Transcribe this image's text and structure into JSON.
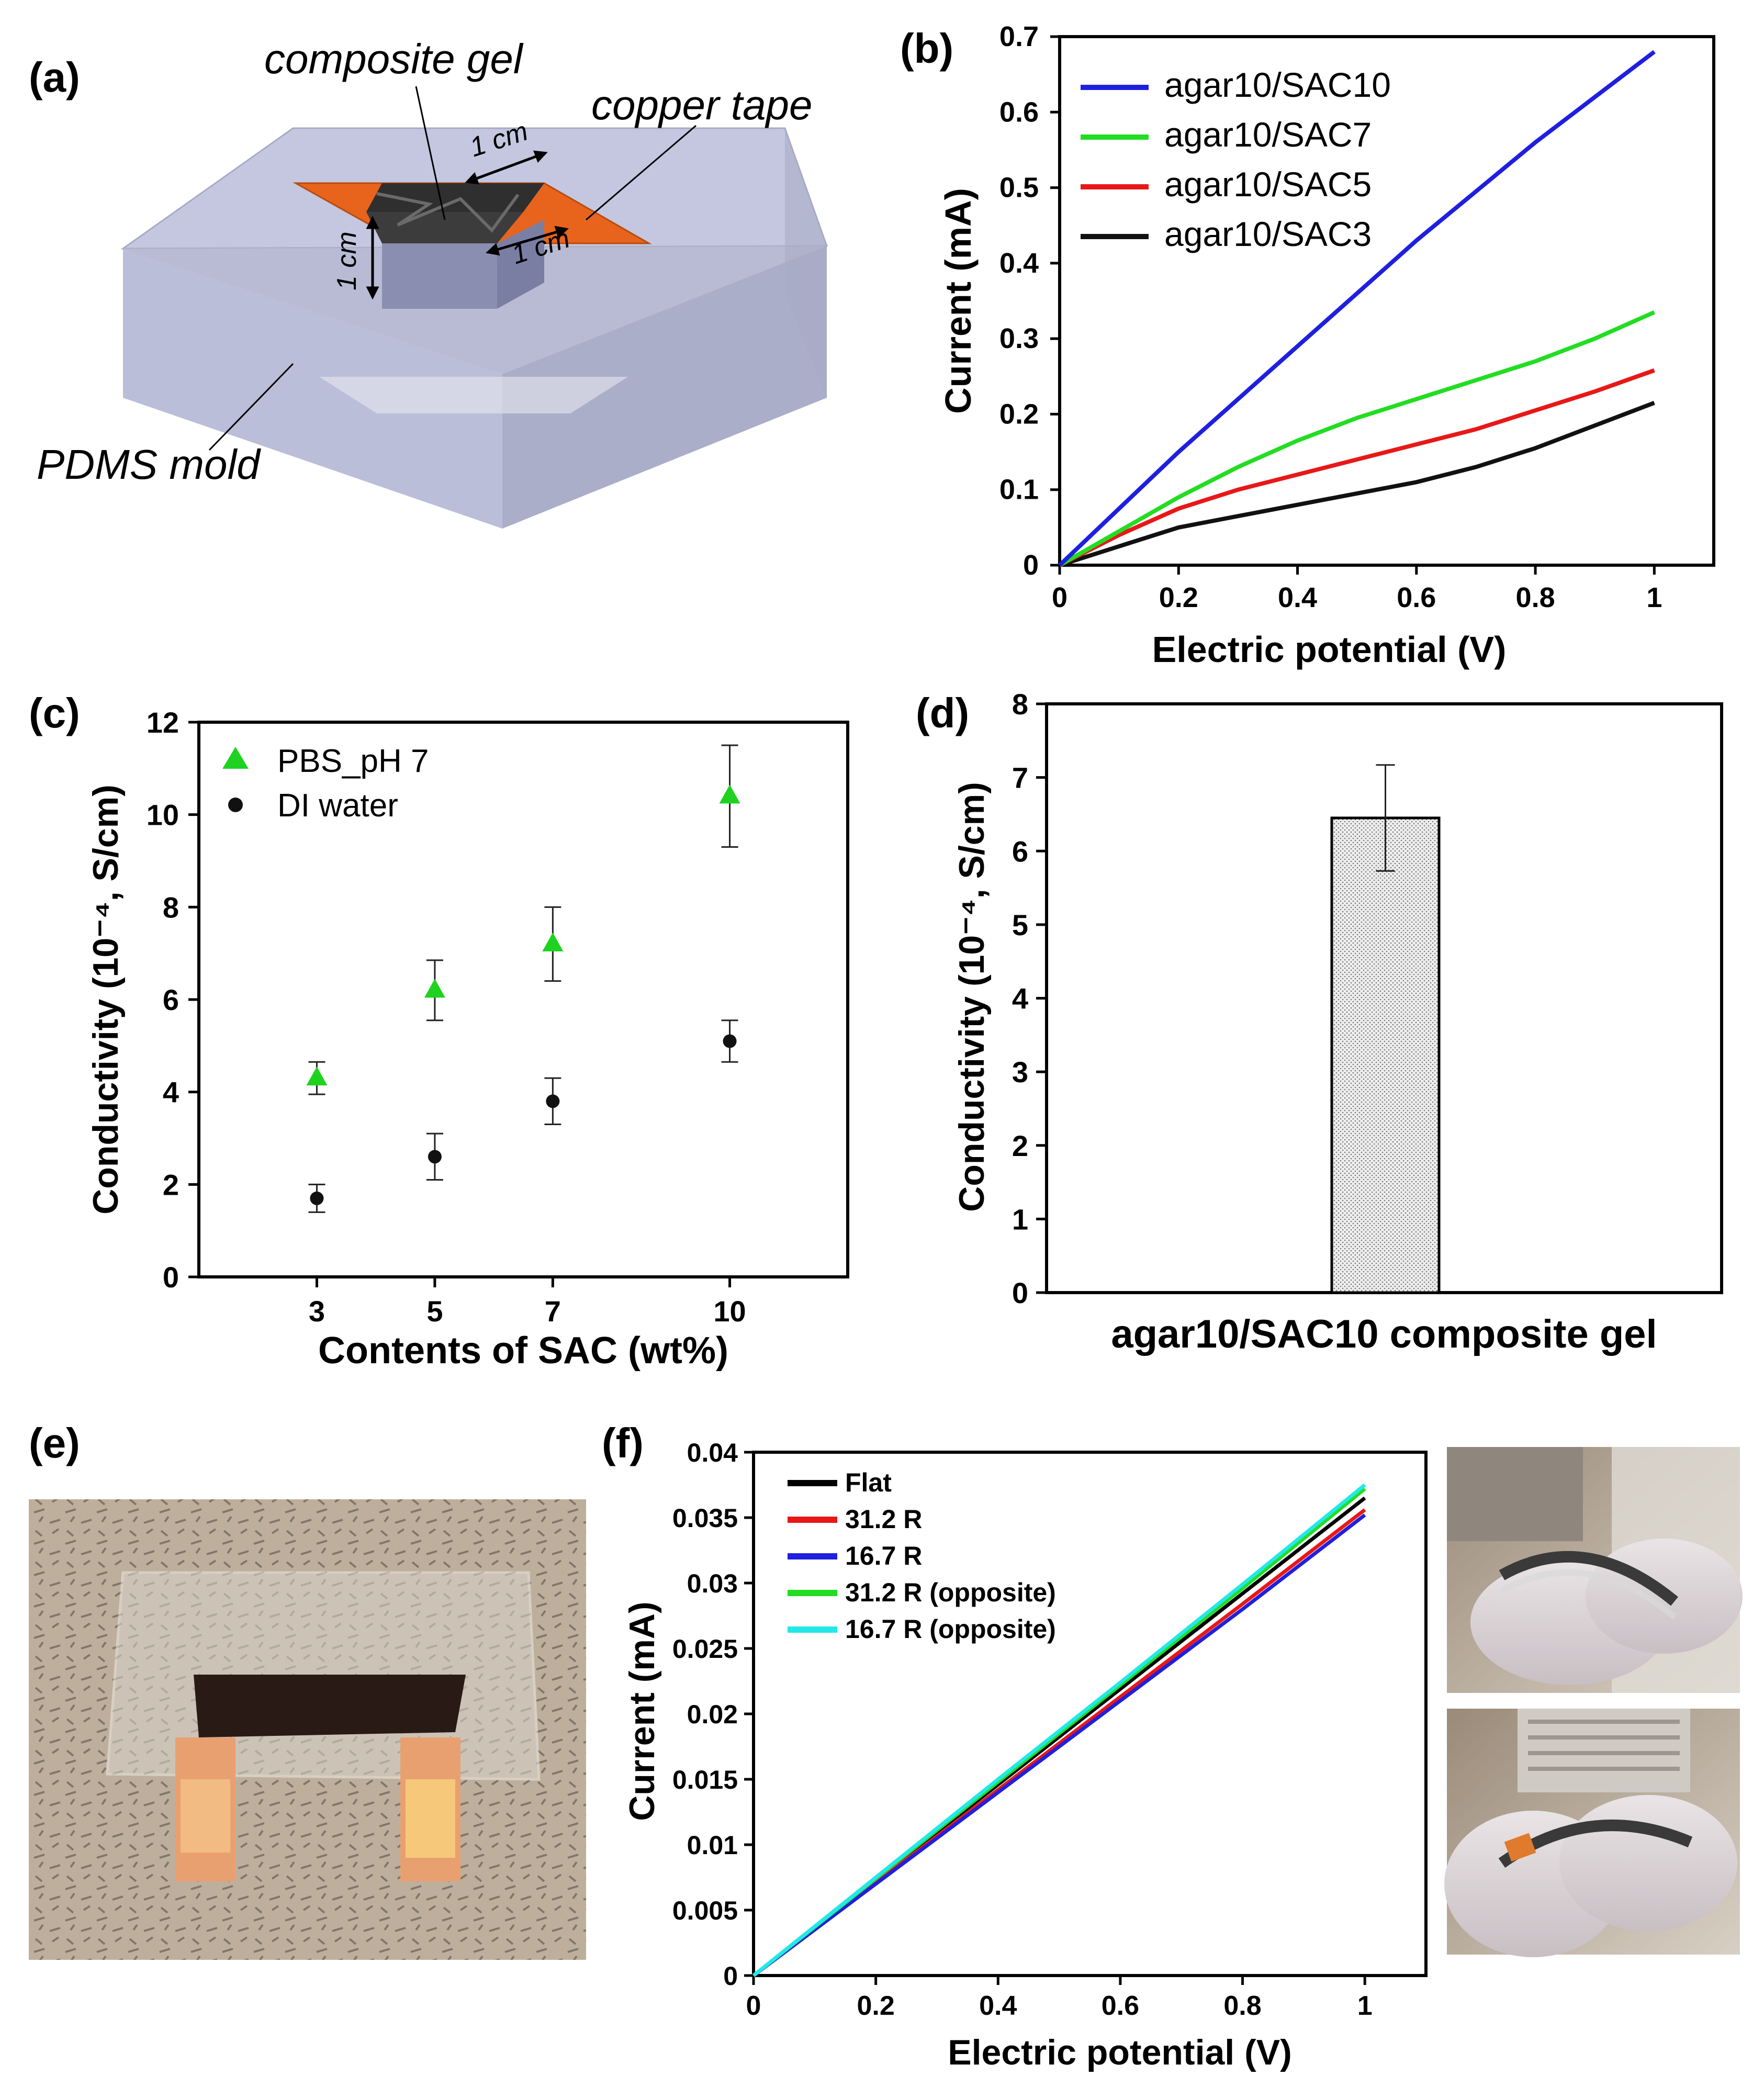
{
  "panel_labels": {
    "a": "(a)",
    "b": "(b)",
    "c": "(c)",
    "d": "(d)",
    "e": "(e)",
    "f": "(f)"
  },
  "diagram_a": {
    "composite_gel": "composite gel",
    "copper_tape": "copper tape",
    "pdms_mold": "PDMS mold",
    "dim_top": "1 cm",
    "dim_side": "1 cm",
    "dim_right": "1 cm",
    "colors": {
      "mold": "#b9bdd8",
      "tape": "#e8641c",
      "gel": "#3a3a3a"
    }
  },
  "photo_e": {
    "colors": {
      "background": "#b6a998",
      "gel": "#2a1a16",
      "copper": "#e9a070"
    }
  },
  "chart_data": [
    {
      "id": "b",
      "type": "line",
      "title": "",
      "xlabel": "Electric potential (V)",
      "ylabel": "Current (mA)",
      "xlim": [
        0,
        1.1
      ],
      "ylim": [
        0,
        0.7
      ],
      "xticks": [
        0,
        0.2,
        0.4,
        0.6,
        0.8,
        1
      ],
      "yticks": [
        0,
        0.1,
        0.2,
        0.3,
        0.4,
        0.5,
        0.6,
        0.7
      ],
      "xtick_labels": [
        "0",
        "0.2",
        "0.4",
        "0.6",
        "0.8",
        "1"
      ],
      "ytick_labels": [
        "0",
        "0.1",
        "0.2",
        "0.3",
        "0.4",
        "0.5",
        "0.6",
        "0.7"
      ],
      "x": [
        0,
        0.1,
        0.2,
        0.3,
        0.4,
        0.5,
        0.6,
        0.7,
        0.8,
        0.9,
        1.0
      ],
      "series": [
        {
          "name": "agar10/SAC10",
          "color": "#1f1fe0",
          "values": [
            0,
            0.075,
            0.15,
            0.22,
            0.29,
            0.36,
            0.43,
            0.495,
            0.56,
            0.62,
            0.68
          ]
        },
        {
          "name": "agar10/SAC7",
          "color": "#22dd22",
          "values": [
            0,
            0.045,
            0.09,
            0.13,
            0.165,
            0.195,
            0.22,
            0.245,
            0.27,
            0.3,
            0.335
          ]
        },
        {
          "name": "agar10/SAC5",
          "color": "#e81818",
          "values": [
            0,
            0.04,
            0.075,
            0.1,
            0.12,
            0.14,
            0.16,
            0.18,
            0.205,
            0.23,
            0.258
          ]
        },
        {
          "name": "agar10/SAC3",
          "color": "#111111",
          "values": [
            0,
            0.025,
            0.05,
            0.065,
            0.08,
            0.095,
            0.11,
            0.13,
            0.155,
            0.185,
            0.215
          ]
        }
      ],
      "legend": "top-left"
    },
    {
      "id": "c",
      "type": "scatter",
      "xlabel": "Contents of SAC (wt%)",
      "ylabel": "Conductivity (10⁻⁴, S/cm)",
      "categories": [
        "3",
        "5",
        "7",
        "10"
      ],
      "x": [
        3,
        5,
        7,
        10
      ],
      "xlim": [
        1,
        12
      ],
      "ylim": [
        0,
        12
      ],
      "yticks": [
        0,
        2,
        4,
        6,
        8,
        10,
        12
      ],
      "ytick_labels": [
        "0",
        "2",
        "4",
        "6",
        "8",
        "10",
        "12"
      ],
      "series": [
        {
          "name": "PBS_pH 7",
          "marker": "triangle",
          "color": "#1fd21f",
          "values": [
            4.3,
            6.2,
            7.2,
            10.4
          ],
          "errors": [
            0.35,
            0.65,
            0.8,
            1.1
          ]
        },
        {
          "name": "DI water",
          "marker": "circle",
          "color": "#111111",
          "values": [
            1.7,
            2.6,
            3.8,
            5.1
          ],
          "errors": [
            0.3,
            0.5,
            0.5,
            0.45
          ]
        }
      ],
      "legend": "top-left"
    },
    {
      "id": "d",
      "type": "bar",
      "xlabel": "agar10/SAC10 composite gel",
      "ylabel": "Conductivity (10⁻⁴, S/cm)",
      "categories": [
        "agar10/SAC10 composite gel"
      ],
      "values": [
        6.45
      ],
      "errors": [
        0.72
      ],
      "ylim": [
        0,
        8
      ],
      "yticks": [
        0,
        1,
        2,
        3,
        4,
        5,
        6,
        7,
        8
      ],
      "ytick_labels": [
        "0",
        "1",
        "2",
        "3",
        "4",
        "5",
        "6",
        "7",
        "8"
      ]
    },
    {
      "id": "f",
      "type": "line",
      "xlabel": "Electric potential (V)",
      "ylabel": "Current (mA)",
      "xlim": [
        0,
        1.1
      ],
      "ylim": [
        0,
        0.04
      ],
      "xticks": [
        0,
        0.2,
        0.4,
        0.6,
        0.8,
        1
      ],
      "xtick_labels": [
        "0",
        "0.2",
        "0.4",
        "0.6",
        "0.8",
        "1"
      ],
      "yticks": [
        0,
        0.005,
        0.01,
        0.015,
        0.02,
        0.025,
        0.03,
        0.035,
        0.04
      ],
      "ytick_labels": [
        "0",
        "0.005",
        "0.01",
        "0.015",
        "0.02",
        "0.025",
        "0.03",
        "0.035",
        "0.04"
      ],
      "x": [
        0,
        0.2,
        0.4,
        0.6,
        0.8,
        1.0
      ],
      "series": [
        {
          "name": "Flat",
          "color": "#000000",
          "values": [
            0,
            0.0073,
            0.0146,
            0.0219,
            0.0292,
            0.0365
          ]
        },
        {
          "name": "31.2 R",
          "color": "#e81818",
          "values": [
            0,
            0.0071,
            0.0142,
            0.0213,
            0.0284,
            0.0356
          ]
        },
        {
          "name": "16.7 R",
          "color": "#1f1fe0",
          "values": [
            0,
            0.007,
            0.014,
            0.021,
            0.028,
            0.0352
          ]
        },
        {
          "name": "31.2 R (opposite)",
          "color": "#22dd22",
          "values": [
            0,
            0.0074,
            0.0148,
            0.0222,
            0.0296,
            0.0372
          ]
        },
        {
          "name": "16.7 R (opposite)",
          "color": "#22e8e8",
          "values": [
            0,
            0.0075,
            0.015,
            0.0224,
            0.0299,
            0.0375
          ]
        }
      ],
      "legend": "top-left"
    }
  ]
}
